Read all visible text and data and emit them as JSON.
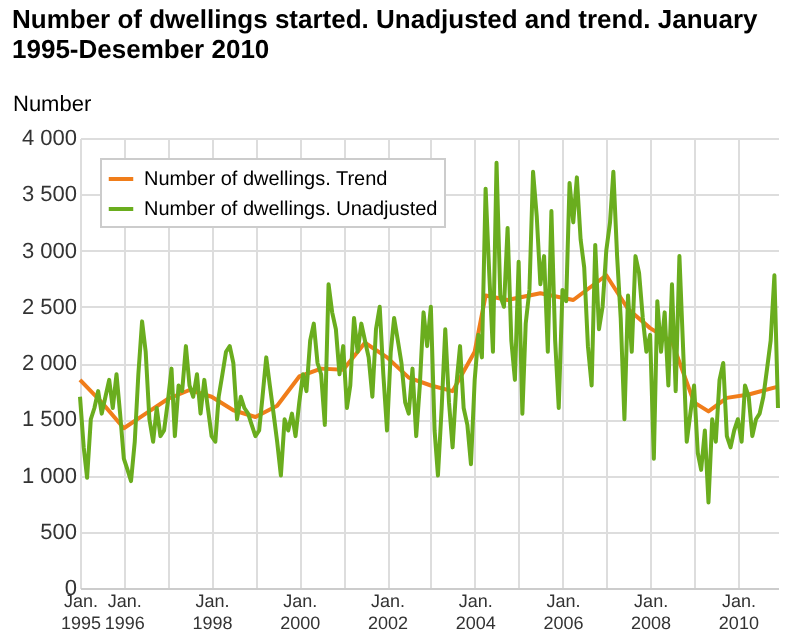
{
  "chart_data": {
    "type": "line",
    "title": "Number of dwellings started. Unadjusted and trend. January 1995-Desember 2010",
    "ylabel": "Number",
    "xlim": [
      "1995-01",
      "2010-12"
    ],
    "xticks": [
      {
        "value": "1995-01",
        "label": "Jan. 1995"
      },
      {
        "value": "1996-01",
        "label": "Jan. 1996"
      },
      {
        "value": "1997-01",
        "label": null
      },
      {
        "value": "1998-01",
        "label": "Jan. 1998"
      },
      {
        "value": "1999-01",
        "label": null
      },
      {
        "value": "2000-01",
        "label": "Jan. 2000"
      },
      {
        "value": "2001-01",
        "label": null
      },
      {
        "value": "2002-01",
        "label": "Jan. 2002"
      },
      {
        "value": "2003-01",
        "label": null
      },
      {
        "value": "2004-01",
        "label": "Jan. 2004"
      },
      {
        "value": "2005-01",
        "label": null
      },
      {
        "value": "2006-01",
        "label": "Jan. 2006"
      },
      {
        "value": "2007-01",
        "label": null
      },
      {
        "value": "2008-01",
        "label": "Jan. 2008"
      },
      {
        "value": "2009-01",
        "label": null
      },
      {
        "value": "2010-01",
        "label": "Jan. 2010"
      }
    ],
    "ylim": [
      0,
      4000
    ],
    "yticks": [
      {
        "value": 0,
        "label": "0"
      },
      {
        "value": 500,
        "label": "500"
      },
      {
        "value": 1000,
        "label": "1 000"
      },
      {
        "value": 1500,
        "label": "1 500"
      },
      {
        "value": 2000,
        "label": "2 000"
      },
      {
        "value": 2500,
        "label": "2 500"
      },
      {
        "value": 3000,
        "label": "3 000"
      },
      {
        "value": 3500,
        "label": "3 500"
      },
      {
        "value": 4000,
        "label": "4 000"
      }
    ],
    "grid": true,
    "legend": "top left",
    "marker": "none",
    "line_style": "solid",
    "series": [
      {
        "name": "Number of dwellings. Trend",
        "color": "#f07d1a",
        "x": [
          "1995-01",
          "1995-07",
          "1996-01",
          "1996-07",
          "1997-01",
          "1997-07",
          "1998-01",
          "1998-07",
          "1999-01",
          "1999-07",
          "2000-01",
          "2000-07",
          "2001-01",
          "2001-07",
          "2002-01",
          "2002-07",
          "2003-01",
          "2003-07",
          "2004-01",
          "2004-04",
          "2004-10",
          "2005-07",
          "2006-04",
          "2007-01",
          "2007-07",
          "2008-01",
          "2008-07",
          "2009-01",
          "2009-05",
          "2009-10",
          "2010-04",
          "2010-12"
        ],
        "values": [
          1850,
          1650,
          1420,
          1550,
          1680,
          1760,
          1700,
          1580,
          1520,
          1620,
          1880,
          1950,
          1940,
          2180,
          2050,
          1870,
          1800,
          1750,
          2100,
          2600,
          2560,
          2620,
          2560,
          2780,
          2480,
          2310,
          2190,
          1650,
          1570,
          1690,
          1720,
          1790
        ]
      },
      {
        "name": "Number of dwellings. Unadjusted",
        "color": "#6aad1e",
        "x": [
          "1995-01",
          "1995-02",
          "1995-03",
          "1995-04",
          "1995-05",
          "1995-06",
          "1995-07",
          "1995-08",
          "1995-09",
          "1995-10",
          "1995-11",
          "1995-12",
          "1996-01",
          "1996-02",
          "1996-03",
          "1996-04",
          "1996-05",
          "1996-06",
          "1996-07",
          "1996-08",
          "1996-09",
          "1996-10",
          "1996-11",
          "1996-12",
          "1997-01",
          "1997-02",
          "1997-03",
          "1997-04",
          "1997-05",
          "1997-06",
          "1997-07",
          "1997-08",
          "1997-09",
          "1997-10",
          "1997-11",
          "1997-12",
          "1998-01",
          "1998-02",
          "1998-03",
          "1998-04",
          "1998-05",
          "1998-06",
          "1998-07",
          "1998-08",
          "1998-09",
          "1998-10",
          "1998-11",
          "1998-12",
          "1999-01",
          "1999-02",
          "1999-03",
          "1999-04",
          "1999-05",
          "1999-06",
          "1999-07",
          "1999-08",
          "1999-09",
          "1999-10",
          "1999-11",
          "1999-12",
          "2000-01",
          "2000-02",
          "2000-03",
          "2000-04",
          "2000-05",
          "2000-06",
          "2000-07",
          "2000-08",
          "2000-09",
          "2000-10",
          "2000-11",
          "2000-12",
          "2001-01",
          "2001-02",
          "2001-03",
          "2001-04",
          "2001-05",
          "2001-06",
          "2001-07",
          "2001-08",
          "2001-09",
          "2001-10",
          "2001-11",
          "2001-12",
          "2002-01",
          "2002-02",
          "2002-03",
          "2002-04",
          "2002-05",
          "2002-06",
          "2002-07",
          "2002-08",
          "2002-09",
          "2002-10",
          "2002-11",
          "2002-12",
          "2003-01",
          "2003-02",
          "2003-03",
          "2003-04",
          "2003-05",
          "2003-06",
          "2003-07",
          "2003-08",
          "2003-09",
          "2003-10",
          "2003-11",
          "2003-12",
          "2004-01",
          "2004-02",
          "2004-03",
          "2004-04",
          "2004-05",
          "2004-06",
          "2004-07",
          "2004-08",
          "2004-09",
          "2004-10",
          "2004-11",
          "2004-12",
          "2005-01",
          "2005-02",
          "2005-03",
          "2005-04",
          "2005-05",
          "2005-06",
          "2005-07",
          "2005-08",
          "2005-09",
          "2005-10",
          "2005-11",
          "2005-12",
          "2006-01",
          "2006-02",
          "2006-03",
          "2006-04",
          "2006-05",
          "2006-06",
          "2006-07",
          "2006-08",
          "2006-09",
          "2006-10",
          "2006-11",
          "2006-12",
          "2007-01",
          "2007-02",
          "2007-03",
          "2007-04",
          "2007-05",
          "2007-06",
          "2007-07",
          "2007-08",
          "2007-09",
          "2007-10",
          "2007-11",
          "2007-12",
          "2008-01",
          "2008-02",
          "2008-03",
          "2008-04",
          "2008-05",
          "2008-06",
          "2008-07",
          "2008-08",
          "2008-09",
          "2008-10",
          "2008-11",
          "2008-12",
          "2009-01",
          "2009-02",
          "2009-03",
          "2009-04",
          "2009-05",
          "2009-06",
          "2009-07",
          "2009-08",
          "2009-09",
          "2009-10",
          "2009-11",
          "2009-12",
          "2010-01",
          "2010-02",
          "2010-03",
          "2010-04",
          "2010-05",
          "2010-06",
          "2010-07",
          "2010-08",
          "2010-09",
          "2010-10",
          "2010-11",
          "2010-12"
        ],
        "values": [
          1700,
          1250,
          980,
          1500,
          1600,
          1750,
          1550,
          1700,
          1850,
          1600,
          1900,
          1550,
          1150,
          1050,
          950,
          1300,
          1900,
          2370,
          2100,
          1500,
          1300,
          1600,
          1350,
          1400,
          1650,
          1950,
          1350,
          1800,
          1750,
          2150,
          1800,
          1700,
          1900,
          1550,
          1850,
          1600,
          1350,
          1300,
          1700,
          1900,
          2100,
          2150,
          2000,
          1500,
          1700,
          1600,
          1550,
          1450,
          1350,
          1400,
          1700,
          2050,
          1800,
          1550,
          1300,
          1000,
          1500,
          1400,
          1550,
          1350,
          1650,
          1900,
          1750,
          2200,
          2350,
          2000,
          1900,
          1450,
          2700,
          2450,
          2300,
          1900,
          2150,
          1600,
          1800,
          2400,
          2100,
          2350,
          2200,
          2050,
          1700,
          2300,
          2500,
          1900,
          1400,
          2100,
          2400,
          2200,
          2000,
          1650,
          1550,
          1950,
          1350,
          1800,
          2450,
          2150,
          2500,
          1400,
          1000,
          1600,
          2300,
          1650,
          1250,
          1800,
          2150,
          1600,
          1450,
          1100,
          1850,
          2250,
          2050,
          3550,
          2800,
          2100,
          3780,
          2600,
          2500,
          3200,
          2200,
          1850,
          2900,
          1550,
          2350,
          2650,
          3700,
          3300,
          2700,
          2950,
          2100,
          3350,
          2200,
          1600,
          2650,
          2550,
          3600,
          3250,
          3650,
          3100,
          2850,
          2150,
          1800,
          3050,
          2300,
          2500,
          3000,
          3250,
          3700,
          2950,
          2400,
          1500,
          2600,
          2100,
          2950,
          2800,
          2400,
          2100,
          2250,
          1150,
          2550,
          2100,
          2450,
          1800,
          2700,
          1750,
          2950,
          2150,
          1300,
          1550,
          1800,
          1200,
          1050,
          1400,
          760,
          1500,
          1300,
          1850,
          2000,
          1350,
          1250,
          1400,
          1500,
          1300,
          1800,
          1700,
          1350,
          1500,
          1550,
          1700,
          1950,
          2200,
          2780,
          1600
        ]
      }
    ]
  }
}
